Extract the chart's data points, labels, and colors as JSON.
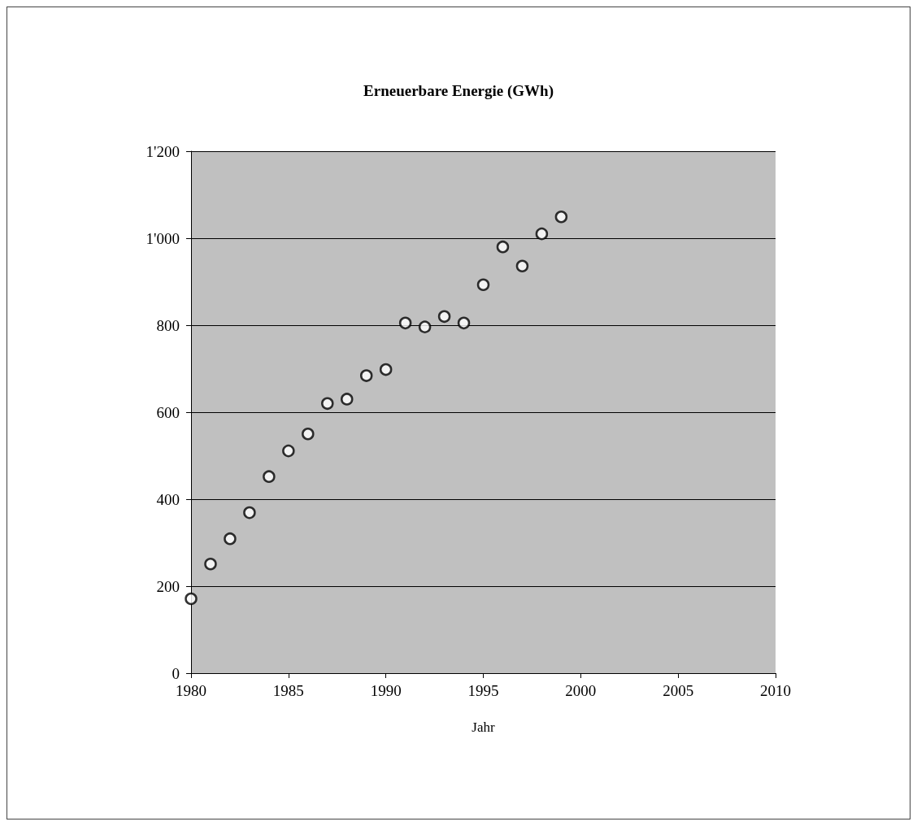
{
  "chart_data": {
    "type": "scatter",
    "title": "Erneuerbare Energie (GWh)",
    "xlabel": "Jahr",
    "x": [
      1980,
      1981,
      1982,
      1983,
      1984,
      1985,
      1986,
      1987,
      1988,
      1989,
      1990,
      1991,
      1992,
      1993,
      1994,
      1995,
      1996,
      1997,
      1998,
      1999
    ],
    "values": [
      171,
      251,
      309,
      369,
      452,
      511,
      550,
      620,
      630,
      684,
      698,
      805,
      796,
      820,
      805,
      893,
      980,
      936,
      1010,
      1049
    ],
    "color": "#ffffff",
    "xlim": [
      1980,
      2010
    ],
    "xticks": [
      1980,
      1985,
      1990,
      1995,
      2000,
      2005,
      2010
    ],
    "ylim": [
      0,
      1200
    ],
    "yticks": [
      0,
      200,
      400,
      600,
      800,
      {
        "value": 1000,
        "label": "1'000"
      },
      {
        "value": 1200,
        "label": "1'200"
      }
    ],
    "grid": "y",
    "marker": "circle"
  }
}
